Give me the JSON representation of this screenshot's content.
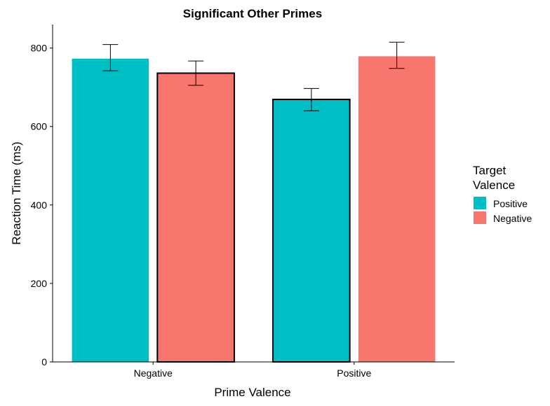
{
  "chart_data": {
    "type": "bar",
    "title": "Significant Other Primes",
    "xlabel": "Prime Valence",
    "ylabel": "Reaction Time (ms)",
    "categories": [
      "Negative",
      "Positive"
    ],
    "ylim": [
      0,
      860
    ],
    "yticks": [
      0,
      200,
      400,
      600,
      800
    ],
    "legend": {
      "title_lines": [
        "Target",
        "Valence"
      ],
      "placement": "right"
    },
    "series": [
      {
        "name": "Positive",
        "color": "#00BFC4",
        "values": [
          773,
          669
        ],
        "error_low": [
          742,
          640
        ],
        "error_high": [
          809,
          697
        ],
        "outlined": [
          false,
          true
        ]
      },
      {
        "name": "Negative",
        "color": "#F8766D",
        "values": [
          736,
          779
        ],
        "error_low": [
          705,
          748
        ],
        "error_high": [
          767,
          815
        ],
        "outlined": [
          true,
          false
        ]
      }
    ],
    "grid": false
  }
}
